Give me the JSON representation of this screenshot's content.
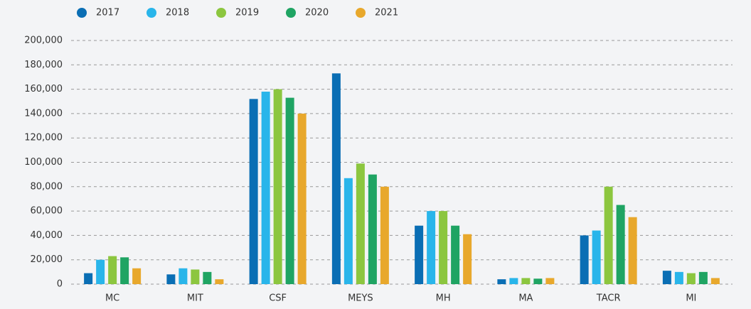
{
  "chart_data": {
    "type": "bar",
    "categories": [
      "MC",
      "MIT",
      "CSF",
      "MEYS",
      "MH",
      "MA",
      "TACR",
      "MI"
    ],
    "series": [
      {
        "name": "2017",
        "color": "#0a6eb4",
        "values": [
          9000,
          8000,
          152000,
          173000,
          48000,
          4000,
          40000,
          11000
        ]
      },
      {
        "name": "2018",
        "color": "#29b5ea",
        "values": [
          20000,
          13000,
          158000,
          87000,
          60000,
          5000,
          44000,
          10000
        ]
      },
      {
        "name": "2019",
        "color": "#8cc63f",
        "values": [
          23000,
          12000,
          160000,
          99000,
          60000,
          5000,
          80000,
          9000
        ]
      },
      {
        "name": "2020",
        "color": "#1fa463",
        "values": [
          22000,
          10000,
          153000,
          90000,
          48000,
          4500,
          65000,
          10000
        ]
      },
      {
        "name": "2021",
        "color": "#e8a82c",
        "values": [
          13000,
          4000,
          140000,
          80000,
          41000,
          5000,
          55000,
          5000
        ]
      }
    ],
    "ylim": [
      0,
      200000
    ],
    "yticks": [
      0,
      {
        "value": 20000,
        "label": "20,000"
      },
      {
        "value": 40000,
        "label": "40,000"
      },
      {
        "value": 60000,
        "label": "60,000"
      },
      {
        "value": 80000,
        "label": "80,000"
      },
      {
        "value": 100000,
        "label": "100,000"
      },
      {
        "value": 120000,
        "label": "120,000"
      },
      {
        "value": 140000,
        "label": "140,000"
      },
      {
        "value": 160000,
        "label": "160,000"
      },
      {
        "value": 180000,
        "label": "180,000"
      },
      {
        "value": 200000,
        "label": "200,000"
      }
    ],
    "grid": true,
    "legend": "top-left"
  }
}
